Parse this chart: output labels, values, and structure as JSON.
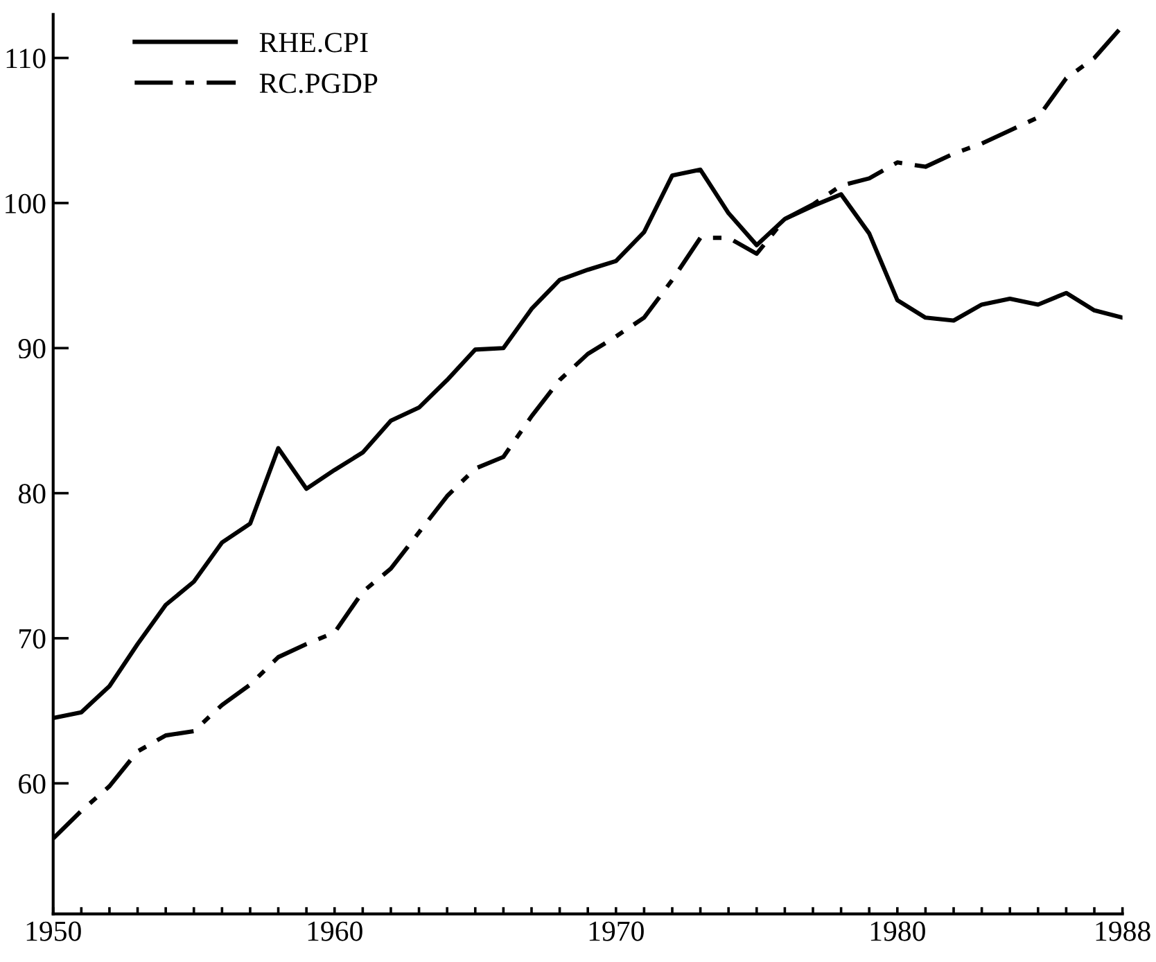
{
  "chart_data": {
    "type": "line",
    "x": [
      1950,
      1951,
      1952,
      1953,
      1954,
      1955,
      1956,
      1957,
      1958,
      1959,
      1960,
      1961,
      1962,
      1963,
      1964,
      1965,
      1966,
      1967,
      1968,
      1969,
      1970,
      1971,
      1972,
      1973,
      1974,
      1975,
      1976,
      1977,
      1978,
      1979,
      1980,
      1981,
      1982,
      1983,
      1984,
      1985,
      1986,
      1987,
      1988
    ],
    "series": [
      {
        "name": "RHE.CPI",
        "color": "#000000",
        "line_style": "solid",
        "values": [
          64.5,
          64.9,
          66.7,
          69.6,
          72.3,
          73.9,
          76.6,
          77.9,
          83.1,
          80.3,
          81.6,
          82.8,
          85.0,
          85.9,
          87.8,
          89.9,
          90.0,
          92.7,
          94.7,
          95.4,
          96.0,
          98.0,
          101.9,
          102.3,
          99.3,
          97.1,
          98.9,
          99.8,
          100.6,
          97.9,
          93.3,
          92.1,
          91.9,
          93.0,
          93.4,
          93.0,
          93.8,
          92.6,
          92.1
        ]
      },
      {
        "name": "RC.PGDP",
        "color": "#000000",
        "line_style": "dashdot",
        "values": [
          56.2,
          58.1,
          59.8,
          62.2,
          63.3,
          63.6,
          65.4,
          66.8,
          68.7,
          69.6,
          70.4,
          73.2,
          74.8,
          77.3,
          79.8,
          81.7,
          82.5,
          85.3,
          87.8,
          89.6,
          90.8,
          92.1,
          94.7,
          97.6,
          97.6,
          96.5,
          98.9,
          99.9,
          101.2,
          101.7,
          102.8,
          102.5,
          103.4,
          104.1,
          105.0,
          105.9,
          108.6,
          110.0,
          112.2
        ]
      }
    ],
    "xlim": [
      1950,
      1988
    ],
    "xticks": [
      1950,
      {
        "value": 1951,
        "label": null
      },
      {
        "value": 1952,
        "label": null
      },
      {
        "value": 1953,
        "label": null
      },
      {
        "value": 1954,
        "label": null
      },
      {
        "value": 1955,
        "label": null
      },
      {
        "value": 1956,
        "label": null
      },
      {
        "value": 1957,
        "label": null
      },
      {
        "value": 1958,
        "label": null
      },
      {
        "value": 1959,
        "label": null
      },
      1960,
      {
        "value": 1961,
        "label": null
      },
      {
        "value": 1962,
        "label": null
      },
      {
        "value": 1963,
        "label": null
      },
      {
        "value": 1964,
        "label": null
      },
      {
        "value": 1965,
        "label": null
      },
      {
        "value": 1966,
        "label": null
      },
      {
        "value": 1967,
        "label": null
      },
      {
        "value": 1968,
        "label": null
      },
      {
        "value": 1969,
        "label": null
      },
      1970,
      {
        "value": 1971,
        "label": null
      },
      {
        "value": 1972,
        "label": null
      },
      {
        "value": 1973,
        "label": null
      },
      {
        "value": 1974,
        "label": null
      },
      {
        "value": 1975,
        "label": null
      },
      {
        "value": 1976,
        "label": null
      },
      {
        "value": 1977,
        "label": null
      },
      {
        "value": 1978,
        "label": null
      },
      {
        "value": 1979,
        "label": null
      },
      1980,
      {
        "value": 1981,
        "label": null
      },
      {
        "value": 1982,
        "label": null
      },
      {
        "value": 1983,
        "label": null
      },
      {
        "value": 1984,
        "label": null
      },
      {
        "value": 1985,
        "label": null
      },
      {
        "value": 1986,
        "label": null
      },
      {
        "value": 1987,
        "label": null
      },
      1988
    ],
    "ylim": [
      51,
      113
    ],
    "yticks": [
      60,
      70,
      80,
      90,
      100,
      110
    ],
    "grid": false,
    "legend": "top left",
    "marker": "none"
  }
}
